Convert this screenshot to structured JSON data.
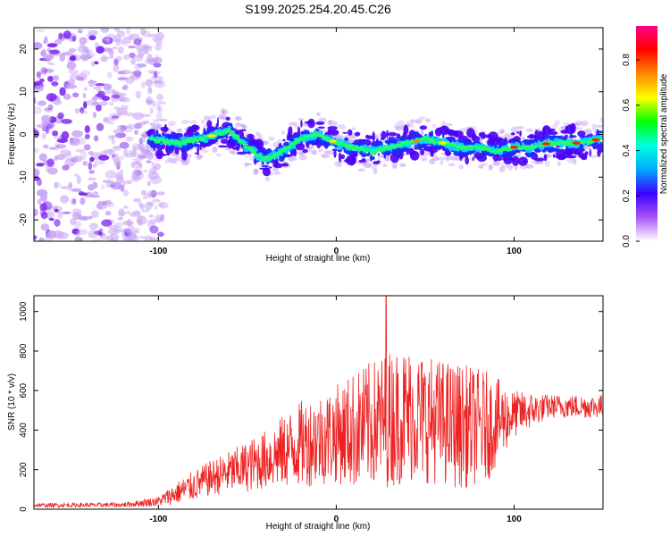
{
  "title": "S199.2025.254.20.45.C26",
  "colors": {
    "snr_line": "#ee2222",
    "colormap": [
      "#ffffff",
      "#a855f7",
      "#3b00ff",
      "#00aaff",
      "#00ffe0",
      "#00ff00",
      "#ffff00",
      "#ff8800",
      "#ff0000",
      "#ff0088"
    ]
  },
  "chart_data": [
    {
      "type": "heatmap",
      "name": "spectrogram",
      "xlabel": "Height of straight line (km)",
      "ylabel": "Frequency (Hz)",
      "xlim": [
        -170,
        150
      ],
      "ylim": [
        -25,
        25
      ],
      "xticks": [
        -100,
        0,
        100
      ],
      "yticks": [
        20,
        10,
        0,
        -10,
        -20
      ],
      "x_tick_labels": [
        "-100",
        "0",
        "100"
      ],
      "y_tick_labels": [
        "20",
        "10",
        "0",
        "-10",
        "-20"
      ],
      "colorbar": {
        "label": "Normalized spectral amplitude",
        "range": [
          0,
          0.95
        ],
        "ticks": [
          0.0,
          0.2,
          0.4,
          0.6,
          0.8
        ],
        "tick_labels": [
          "0.0",
          "0.2",
          "0.4",
          "0.6",
          "0.8"
        ]
      },
      "noise_region_x": [
        -170,
        -105
      ],
      "ridge": {
        "x": [
          -105,
          -90,
          -75,
          -60,
          -50,
          -40,
          -30,
          -20,
          -10,
          0,
          10,
          20,
          30,
          40,
          50,
          60,
          70,
          80,
          90,
          100,
          110,
          120,
          130,
          140,
          148
        ],
        "freq_hz": [
          -1,
          -2,
          -1,
          1,
          -3,
          -6,
          -4,
          -1,
          0,
          -2,
          -3,
          -4,
          -3,
          -2,
          -1,
          -2,
          -3,
          -3,
          -4,
          -3,
          -3,
          -2,
          -2,
          -2,
          -1
        ]
      }
    },
    {
      "type": "line",
      "name": "snr",
      "xlabel": "Height of straight line (km)",
      "ylabel": "SNR (10 * v/v)",
      "xlim": [
        -170,
        150
      ],
      "ylim": [
        0,
        1080
      ],
      "xticks": [
        -100,
        0,
        100
      ],
      "yticks": [
        0,
        200,
        400,
        600,
        800,
        1000
      ],
      "x_tick_labels": [
        "-100",
        "0",
        "100"
      ],
      "y_tick_labels": [
        "0",
        "200",
        "400",
        "600",
        "800",
        "1000"
      ],
      "series": [
        {
          "name": "SNR",
          "envelope_x": [
            -170,
            -120,
            -100,
            -85,
            -70,
            -55,
            -40,
            -20,
            0,
            10,
            20,
            30,
            40,
            55,
            70,
            85,
            100,
            120,
            140,
            150
          ],
          "envelope_mean": [
            20,
            22,
            40,
            100,
            160,
            200,
            250,
            330,
            380,
            400,
            430,
            460,
            480,
            450,
            420,
            420,
            480,
            520,
            520,
            520
          ],
          "envelope_amplitude": [
            10,
            12,
            25,
            70,
            90,
            120,
            150,
            220,
            250,
            300,
            320,
            350,
            350,
            320,
            320,
            280,
            120,
            60,
            60,
            60
          ],
          "peak_x": 28,
          "peak_value": 1080
        }
      ]
    }
  ]
}
